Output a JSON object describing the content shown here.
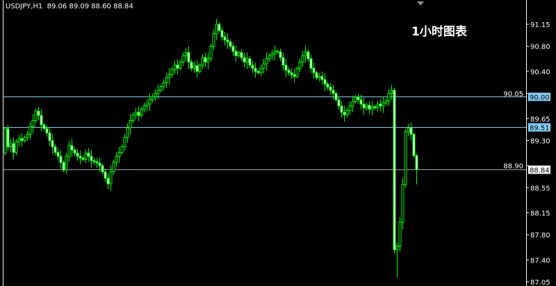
{
  "header": {
    "symbol_timeframe": "USDJPY,H1",
    "ohlc_readout": "89.06 89.09 88.60 88.84"
  },
  "overlay_title": "1小时图表",
  "colors": {
    "background": "#000000",
    "candle": "#00ff00",
    "axis": "#ffffff",
    "line_blue": "#87cefa",
    "line_gray": "#a0a8b0"
  },
  "chart_data": {
    "type": "candlestick",
    "symbol": "USDJPY",
    "timeframe": "H1",
    "ylim": [
      87.05,
      91.15
    ],
    "y_ticks": [
      "91.15",
      "90.80",
      "90.40",
      "90.05",
      "89.65",
      "89.30",
      "88.90",
      "88.55",
      "88.15",
      "87.80",
      "87.40",
      "87.05"
    ],
    "first_open": 89.1,
    "closes": [
      89.49,
      89.2,
      89.25,
      89.11,
      89.28,
      89.33,
      89.3,
      89.35,
      89.4,
      89.52,
      89.62,
      89.77,
      89.7,
      89.55,
      89.49,
      89.42,
      89.3,
      89.2,
      89.11,
      89.05,
      88.95,
      88.83,
      89.05,
      89.22,
      89.15,
      89.1,
      89.05,
      89.02,
      89.0,
      89.1,
      89.05,
      88.98,
      88.96,
      88.94,
      88.9,
      88.8,
      88.7,
      88.61,
      88.8,
      88.95,
      89.05,
      89.11,
      89.2,
      89.35,
      89.5,
      89.62,
      89.71,
      89.75,
      89.7,
      89.8,
      89.85,
      89.88,
      89.95,
      90.0,
      90.05,
      90.1,
      90.16,
      90.22,
      90.3,
      90.35,
      90.43,
      90.5,
      90.45,
      90.55,
      90.65,
      90.7,
      90.55,
      90.45,
      90.49,
      90.4,
      90.5,
      90.62,
      90.55,
      90.6,
      90.8,
      91.0,
      91.15,
      91.05,
      90.95,
      90.9,
      90.87,
      90.8,
      90.72,
      90.65,
      90.7,
      90.62,
      90.55,
      90.6,
      90.5,
      90.45,
      90.4,
      90.38,
      90.45,
      90.52,
      90.6,
      90.65,
      90.68,
      90.72,
      90.71,
      90.62,
      90.5,
      90.42,
      90.38,
      90.35,
      90.32,
      90.45,
      90.55,
      90.65,
      90.71,
      90.6,
      90.45,
      90.38,
      90.3,
      90.32,
      90.27,
      90.2,
      90.15,
      90.1,
      90.05,
      89.95,
      89.85,
      89.75,
      89.71,
      89.78,
      89.85,
      89.92,
      89.99,
      89.95,
      89.88,
      89.82,
      89.86,
      89.8,
      89.84,
      89.82,
      89.88,
      89.85,
      89.9,
      89.93,
      90.05,
      90.1,
      87.56,
      87.62,
      88.0,
      88.6,
      89.44,
      89.5,
      89.4,
      89.06,
      88.84
    ],
    "last_candle": {
      "open": 89.06,
      "high": 89.09,
      "low": 88.6,
      "close": 88.84
    },
    "horizontal_lines": [
      {
        "price": 90.0,
        "label": "90.00",
        "color": "#87cefa"
      },
      {
        "price": 89.51,
        "label": "89.51",
        "color": "#87cefa"
      },
      {
        "price": 88.84,
        "label": "88.84",
        "color": "#a0a8b0"
      }
    ]
  }
}
